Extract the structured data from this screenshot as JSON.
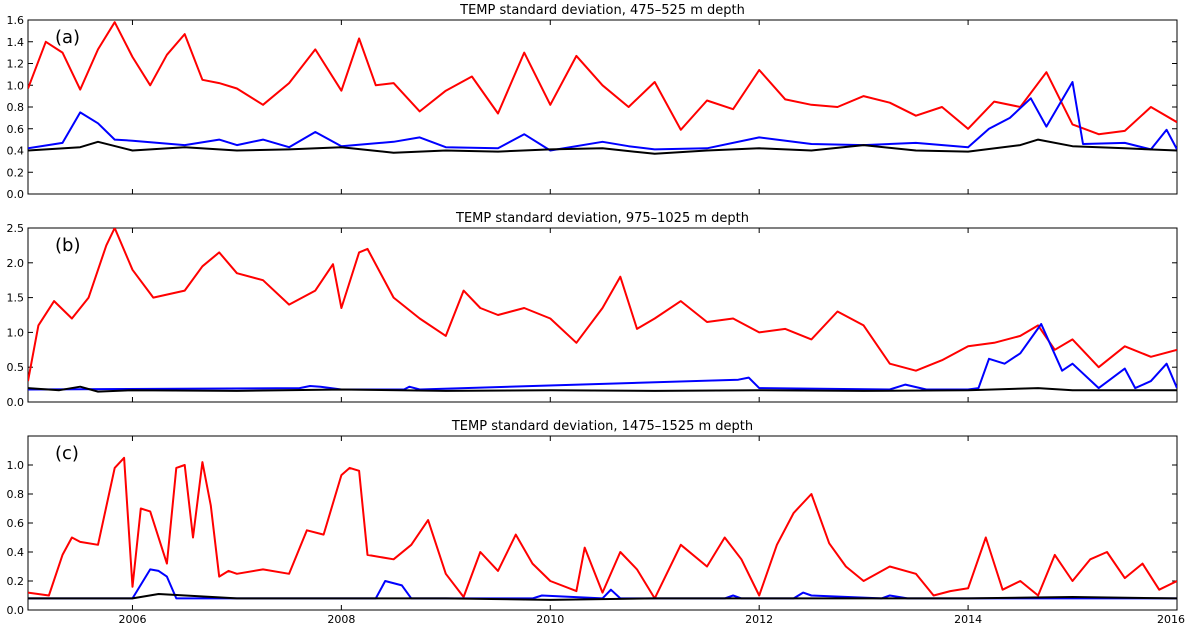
{
  "chart_data": [
    {
      "type": "line",
      "panel_label": "(a)",
      "title": "TEMP standard deviation, 475–525 m depth",
      "xlim": [
        2005.0,
        2016.0
      ],
      "ylim": [
        0.0,
        1.6
      ],
      "yticks": [
        0.0,
        0.2,
        0.4,
        0.6,
        0.8,
        1.0,
        1.2,
        1.4,
        1.6
      ],
      "ytick_labels": [
        "0.0",
        "0.2",
        "0.4",
        "0.6",
        "0.8",
        "1.0",
        "1.2",
        "1.4",
        "1.6"
      ],
      "series": [
        {
          "name": "red",
          "color": "#ff0000",
          "x": [
            2005.0,
            2005.17,
            2005.33,
            2005.5,
            2005.67,
            2005.83,
            2006.0,
            2006.17,
            2006.33,
            2006.5,
            2006.67,
            2006.83,
            2007.0,
            2007.25,
            2007.5,
            2007.75,
            2008.0,
            2008.17,
            2008.33,
            2008.5,
            2008.75,
            2009.0,
            2009.25,
            2009.5,
            2009.75,
            2010.0,
            2010.25,
            2010.5,
            2010.75,
            2011.0,
            2011.25,
            2011.5,
            2011.75,
            2012.0,
            2012.25,
            2012.5,
            2012.75,
            2013.0,
            2013.25,
            2013.5,
            2013.75,
            2014.0,
            2014.25,
            2014.5,
            2014.75,
            2015.0,
            2015.25,
            2015.5,
            2015.75,
            2016.0
          ],
          "values": [
            0.97,
            1.4,
            1.3,
            0.96,
            1.33,
            1.58,
            1.26,
            1.0,
            1.28,
            1.47,
            1.05,
            1.02,
            0.97,
            0.82,
            1.02,
            1.33,
            0.95,
            1.43,
            1.0,
            1.02,
            0.76,
            0.95,
            1.08,
            0.74,
            1.3,
            0.82,
            1.27,
            1.0,
            0.8,
            1.03,
            0.59,
            0.86,
            0.78,
            1.14,
            0.87,
            0.82,
            0.8,
            0.9,
            0.84,
            0.72,
            0.8,
            0.6,
            0.85,
            0.8,
            1.12,
            0.64,
            0.55,
            0.58,
            0.8,
            0.66
          ]
        },
        {
          "name": "blue",
          "color": "#0000ff",
          "x": [
            2005.0,
            2005.33,
            2005.5,
            2005.67,
            2005.83,
            2006.0,
            2006.5,
            2006.83,
            2007.0,
            2007.25,
            2007.5,
            2007.75,
            2008.0,
            2008.5,
            2008.75,
            2009.0,
            2009.5,
            2009.75,
            2010.0,
            2010.5,
            2010.75,
            2011.0,
            2011.5,
            2012.0,
            2012.5,
            2013.0,
            2013.5,
            2014.0,
            2014.2,
            2014.4,
            2014.6,
            2014.75,
            2015.0,
            2015.1,
            2015.5,
            2015.75,
            2015.9,
            2016.0
          ],
          "values": [
            0.42,
            0.47,
            0.75,
            0.65,
            0.5,
            0.49,
            0.45,
            0.5,
            0.45,
            0.5,
            0.43,
            0.57,
            0.44,
            0.48,
            0.52,
            0.43,
            0.42,
            0.55,
            0.4,
            0.48,
            0.44,
            0.41,
            0.42,
            0.52,
            0.46,
            0.45,
            0.47,
            0.43,
            0.6,
            0.7,
            0.88,
            0.62,
            1.03,
            0.46,
            0.47,
            0.41,
            0.59,
            0.41
          ]
        },
        {
          "name": "black",
          "color": "#000000",
          "x": [
            2005.0,
            2005.5,
            2005.67,
            2006.0,
            2006.5,
            2007.0,
            2007.5,
            2008.0,
            2008.5,
            2009.0,
            2009.5,
            2010.0,
            2010.5,
            2011.0,
            2011.5,
            2012.0,
            2012.5,
            2013.0,
            2013.5,
            2014.0,
            2014.5,
            2014.67,
            2015.0,
            2015.5,
            2016.0
          ],
          "values": [
            0.4,
            0.43,
            0.48,
            0.4,
            0.43,
            0.4,
            0.41,
            0.43,
            0.38,
            0.4,
            0.39,
            0.41,
            0.42,
            0.37,
            0.4,
            0.42,
            0.4,
            0.45,
            0.4,
            0.39,
            0.45,
            0.5,
            0.44,
            0.42,
            0.4
          ]
        }
      ]
    },
    {
      "type": "line",
      "panel_label": "(b)",
      "title": "TEMP standard deviation, 975–1025 m depth",
      "xlim": [
        2005.0,
        2016.0
      ],
      "ylim": [
        0.0,
        2.5
      ],
      "yticks": [
        0.0,
        0.5,
        1.0,
        1.5,
        2.0,
        2.5
      ],
      "ytick_labels": [
        "0.0",
        "0.5",
        "1.0",
        "1.5",
        "2.0",
        "2.5"
      ],
      "series": [
        {
          "name": "red",
          "color": "#ff0000",
          "x": [
            2005.0,
            2005.1,
            2005.25,
            2005.42,
            2005.58,
            2005.75,
            2005.83,
            2006.0,
            2006.2,
            2006.5,
            2006.67,
            2006.83,
            2007.0,
            2007.25,
            2007.5,
            2007.75,
            2007.92,
            2008.0,
            2008.17,
            2008.25,
            2008.5,
            2008.75,
            2009.0,
            2009.17,
            2009.33,
            2009.5,
            2009.75,
            2010.0,
            2010.25,
            2010.5,
            2010.67,
            2010.83,
            2011.0,
            2011.25,
            2011.5,
            2011.75,
            2012.0,
            2012.25,
            2012.5,
            2012.75,
            2013.0,
            2013.25,
            2013.5,
            2013.75,
            2014.0,
            2014.25,
            2014.5,
            2014.67,
            2014.83,
            2015.0,
            2015.25,
            2015.5,
            2015.75,
            2016.0
          ],
          "values": [
            0.3,
            1.1,
            1.45,
            1.2,
            1.5,
            2.25,
            2.5,
            1.9,
            1.5,
            1.6,
            1.95,
            2.15,
            1.85,
            1.75,
            1.4,
            1.6,
            1.98,
            1.35,
            2.15,
            2.2,
            1.5,
            1.2,
            0.95,
            1.6,
            1.35,
            1.25,
            1.35,
            1.2,
            0.85,
            1.35,
            1.8,
            1.05,
            1.2,
            1.45,
            1.15,
            1.2,
            1.0,
            1.05,
            0.9,
            1.3,
            1.1,
            0.55,
            0.45,
            0.6,
            0.8,
            0.85,
            0.95,
            1.1,
            0.75,
            0.9,
            0.5,
            0.8,
            0.65,
            0.75
          ]
        },
        {
          "name": "blue",
          "color": "#0000ff",
          "x": [
            2005.0,
            2007.6,
            2007.7,
            2007.8,
            2008.0,
            2008.6,
            2008.65,
            2008.75,
            2011.8,
            2011.9,
            2012.0,
            2013.25,
            2013.4,
            2013.6,
            2014.0,
            2014.1,
            2014.2,
            2014.35,
            2014.5,
            2014.7,
            2014.9,
            2015.0,
            2015.25,
            2015.5,
            2015.6,
            2015.75,
            2015.9,
            2016.0
          ],
          "values": [
            0.18,
            0.2,
            0.23,
            0.22,
            0.18,
            0.18,
            0.22,
            0.18,
            0.32,
            0.35,
            0.2,
            0.18,
            0.25,
            0.18,
            0.18,
            0.2,
            0.62,
            0.55,
            0.7,
            1.12,
            0.45,
            0.55,
            0.2,
            0.48,
            0.2,
            0.3,
            0.55,
            0.2
          ]
        },
        {
          "name": "black",
          "color": "#000000",
          "x": [
            2005.0,
            2005.3,
            2005.5,
            2005.67,
            2006.0,
            2007.0,
            2008.0,
            2009.0,
            2010.0,
            2011.0,
            2012.0,
            2013.0,
            2014.0,
            2014.67,
            2015.0,
            2016.0
          ],
          "values": [
            0.2,
            0.17,
            0.22,
            0.15,
            0.17,
            0.16,
            0.18,
            0.16,
            0.17,
            0.16,
            0.17,
            0.16,
            0.17,
            0.2,
            0.17,
            0.17
          ]
        }
      ]
    },
    {
      "type": "line",
      "panel_label": "(c)",
      "title": "TEMP standard deviation, 1475–1525 m depth",
      "xlim": [
        2005.0,
        2016.0
      ],
      "ylim": [
        0.0,
        1.2
      ],
      "yticks": [
        0.0,
        0.2,
        0.4,
        0.6,
        0.8,
        1.0
      ],
      "ytick_labels": [
        "0.0",
        "0.2",
        "0.4",
        "0.6",
        "0.8",
        "1.0"
      ],
      "xticks": [
        2006,
        2008,
        2010,
        2012,
        2014,
        2016
      ],
      "xtick_labels": [
        "2006",
        "2008",
        "2010",
        "2012",
        "2014",
        "2016"
      ],
      "series": [
        {
          "name": "red",
          "color": "#ff0000",
          "x": [
            2005.0,
            2005.2,
            2005.33,
            2005.42,
            2005.5,
            2005.67,
            2005.83,
            2005.92,
            2006.0,
            2006.08,
            2006.17,
            2006.33,
            2006.42,
            2006.5,
            2006.58,
            2006.67,
            2006.75,
            2006.83,
            2006.92,
            2007.0,
            2007.25,
            2007.5,
            2007.67,
            2007.83,
            2008.0,
            2008.08,
            2008.17,
            2008.25,
            2008.5,
            2008.67,
            2008.83,
            2009.0,
            2009.17,
            2009.33,
            2009.5,
            2009.67,
            2009.83,
            2010.0,
            2010.25,
            2010.33,
            2010.5,
            2010.67,
            2010.83,
            2011.0,
            2011.25,
            2011.5,
            2011.67,
            2011.83,
            2012.0,
            2012.17,
            2012.33,
            2012.5,
            2012.67,
            2012.83,
            2013.0,
            2013.25,
            2013.5,
            2013.67,
            2013.83,
            2014.0,
            2014.17,
            2014.33,
            2014.5,
            2014.67,
            2014.83,
            2015.0,
            2015.17,
            2015.33,
            2015.5,
            2015.67,
            2015.83,
            2016.0
          ],
          "values": [
            0.12,
            0.1,
            0.38,
            0.5,
            0.47,
            0.45,
            0.98,
            1.05,
            0.16,
            0.7,
            0.68,
            0.32,
            0.98,
            1.0,
            0.5,
            1.02,
            0.72,
            0.23,
            0.27,
            0.25,
            0.28,
            0.25,
            0.55,
            0.52,
            0.93,
            0.98,
            0.96,
            0.38,
            0.35,
            0.45,
            0.62,
            0.25,
            0.09,
            0.4,
            0.27,
            0.52,
            0.32,
            0.2,
            0.13,
            0.43,
            0.12,
            0.4,
            0.28,
            0.08,
            0.45,
            0.3,
            0.5,
            0.35,
            0.1,
            0.45,
            0.67,
            0.8,
            0.46,
            0.3,
            0.2,
            0.3,
            0.25,
            0.1,
            0.13,
            0.15,
            0.5,
            0.14,
            0.2,
            0.1,
            0.38,
            0.2,
            0.35,
            0.4,
            0.22,
            0.32,
            0.14,
            0.2
          ]
        },
        {
          "name": "blue",
          "color": "#0000ff",
          "x": [
            2005.0,
            2006.0,
            2006.17,
            2006.25,
            2006.33,
            2006.42,
            2008.33,
            2008.42,
            2008.58,
            2008.67,
            2009.83,
            2009.92,
            2010.5,
            2010.58,
            2010.67,
            2011.67,
            2011.75,
            2011.83,
            2012.33,
            2012.42,
            2012.5,
            2013.17,
            2013.25,
            2013.42,
            2016.0
          ],
          "values": [
            0.08,
            0.08,
            0.28,
            0.27,
            0.23,
            0.08,
            0.08,
            0.2,
            0.17,
            0.08,
            0.08,
            0.1,
            0.08,
            0.14,
            0.08,
            0.08,
            0.1,
            0.08,
            0.08,
            0.12,
            0.1,
            0.08,
            0.1,
            0.08,
            0.08
          ]
        },
        {
          "name": "black",
          "color": "#000000",
          "x": [
            2005.0,
            2006.0,
            2006.25,
            2007.0,
            2008.0,
            2009.0,
            2010.0,
            2011.0,
            2012.0,
            2013.0,
            2014.0,
            2015.0,
            2016.0
          ],
          "values": [
            0.08,
            0.08,
            0.11,
            0.08,
            0.08,
            0.08,
            0.07,
            0.08,
            0.08,
            0.08,
            0.08,
            0.09,
            0.08
          ]
        }
      ]
    }
  ]
}
